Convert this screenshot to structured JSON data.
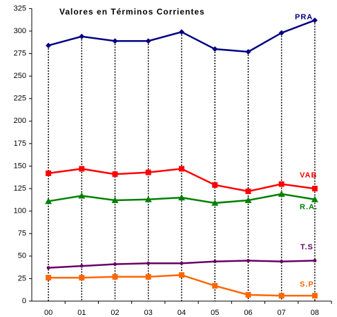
{
  "chart_data": {
    "type": "line",
    "title": "Valores en Términos Corrientes",
    "categories": [
      "00",
      "01",
      "02",
      "03",
      "04",
      "05",
      "06",
      "07",
      "08"
    ],
    "series": [
      {
        "name": "PRA",
        "color": "#000080",
        "marker": "diamond",
        "values": [
          284,
          294,
          289,
          289,
          299,
          280,
          277,
          298,
          312
        ]
      },
      {
        "name": "VAB",
        "color": "#ff0000",
        "marker": "square",
        "values": [
          142,
          147,
          141,
          143,
          147,
          129,
          122,
          130,
          125
        ]
      },
      {
        "name": "R.A.",
        "color": "#008000",
        "marker": "triangle",
        "values": [
          111,
          117,
          112,
          113,
          115,
          109,
          112,
          119,
          113
        ]
      },
      {
        "name": "T.S",
        "color": "#660066",
        "marker": "circle",
        "values": [
          37,
          39,
          41,
          42,
          42,
          44,
          45,
          44,
          45
        ]
      },
      {
        "name": "S.P",
        "color": "#ff6600",
        "marker": "square",
        "values": [
          26,
          26,
          27,
          27,
          29,
          17,
          7,
          6,
          6
        ]
      }
    ],
    "ylim": [
      0,
      325
    ],
    "yticks": [
      0,
      25,
      50,
      75,
      100,
      125,
      150,
      175,
      200,
      225,
      250,
      275,
      300,
      325
    ],
    "drop_lines": true
  }
}
